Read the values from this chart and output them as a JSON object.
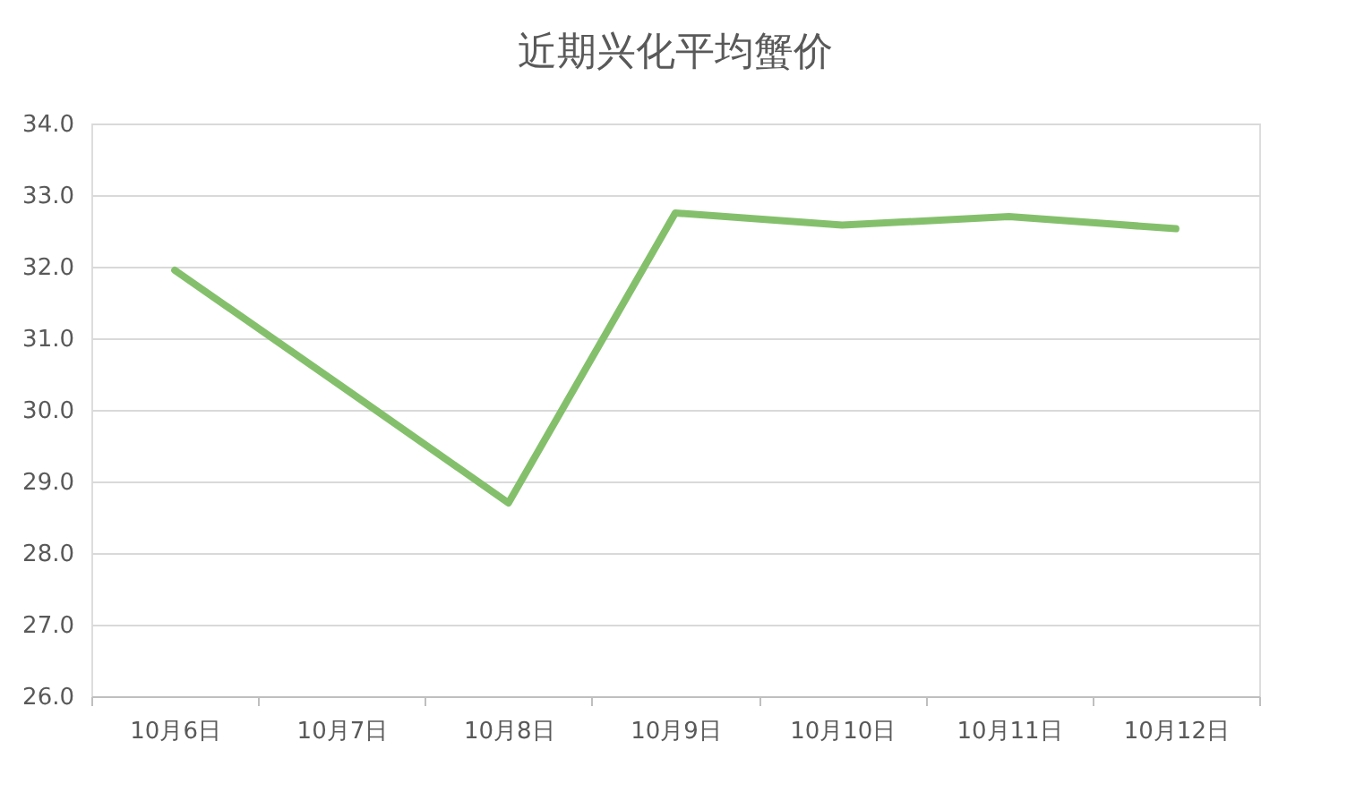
{
  "chart_data": {
    "type": "line",
    "title": "近期兴化平均蟹价",
    "categories": [
      "10月6日",
      "10月7日",
      "10月8日",
      "10月9日",
      "10月10日",
      "10月11日",
      "10月12日"
    ],
    "series": [
      {
        "color": "#84c06c",
        "values": [
          31.95,
          30.33,
          28.7,
          32.75,
          32.58,
          32.7,
          32.53
        ]
      }
    ],
    "ylim": [
      26,
      34
    ],
    "yticks": [
      {
        "value": 26,
        "label": "26.0"
      },
      {
        "value": 27,
        "label": "27.0"
      },
      {
        "value": 28,
        "label": "28.0"
      },
      {
        "value": 29,
        "label": "29.0"
      },
      {
        "value": 30,
        "label": "30.0"
      },
      {
        "value": 31,
        "label": "31.0"
      },
      {
        "value": 32,
        "label": "32.0"
      },
      {
        "value": 33,
        "label": "33.0"
      },
      {
        "value": 34,
        "label": "34.0"
      }
    ],
    "grid": "y",
    "marker": "none",
    "line_style": "solid"
  }
}
